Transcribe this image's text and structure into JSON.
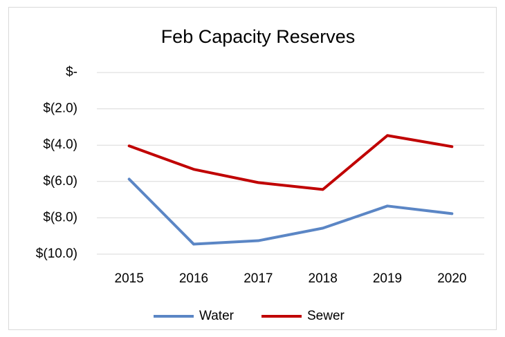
{
  "chart_data": {
    "type": "line",
    "title": "Feb Capacity Reserves",
    "categories": [
      "2015",
      "2016",
      "2017",
      "2018",
      "2019",
      "2020"
    ],
    "series": [
      {
        "name": "Water",
        "color": "#5b86c5",
        "values": [
          -5.87,
          -9.45,
          -9.26,
          -8.57,
          -7.35,
          -7.77
        ]
      },
      {
        "name": "Sewer",
        "color": "#c00000",
        "values": [
          -4.04,
          -5.33,
          -6.06,
          -6.44,
          -3.47,
          -4.08
        ]
      }
    ],
    "ylim": [
      -10,
      0
    ],
    "yticks": [
      {
        "value": 0,
        "label": "$-"
      },
      {
        "value": -2,
        "label": "$(2.0)"
      },
      {
        "value": -4,
        "label": "$(4.0)"
      },
      {
        "value": -6,
        "label": "$(6.0)"
      },
      {
        "value": -8,
        "label": "$(8.0)"
      },
      {
        "value": -10,
        "label": "$(10.0)"
      }
    ],
    "grid": true,
    "legend": "bottom"
  }
}
